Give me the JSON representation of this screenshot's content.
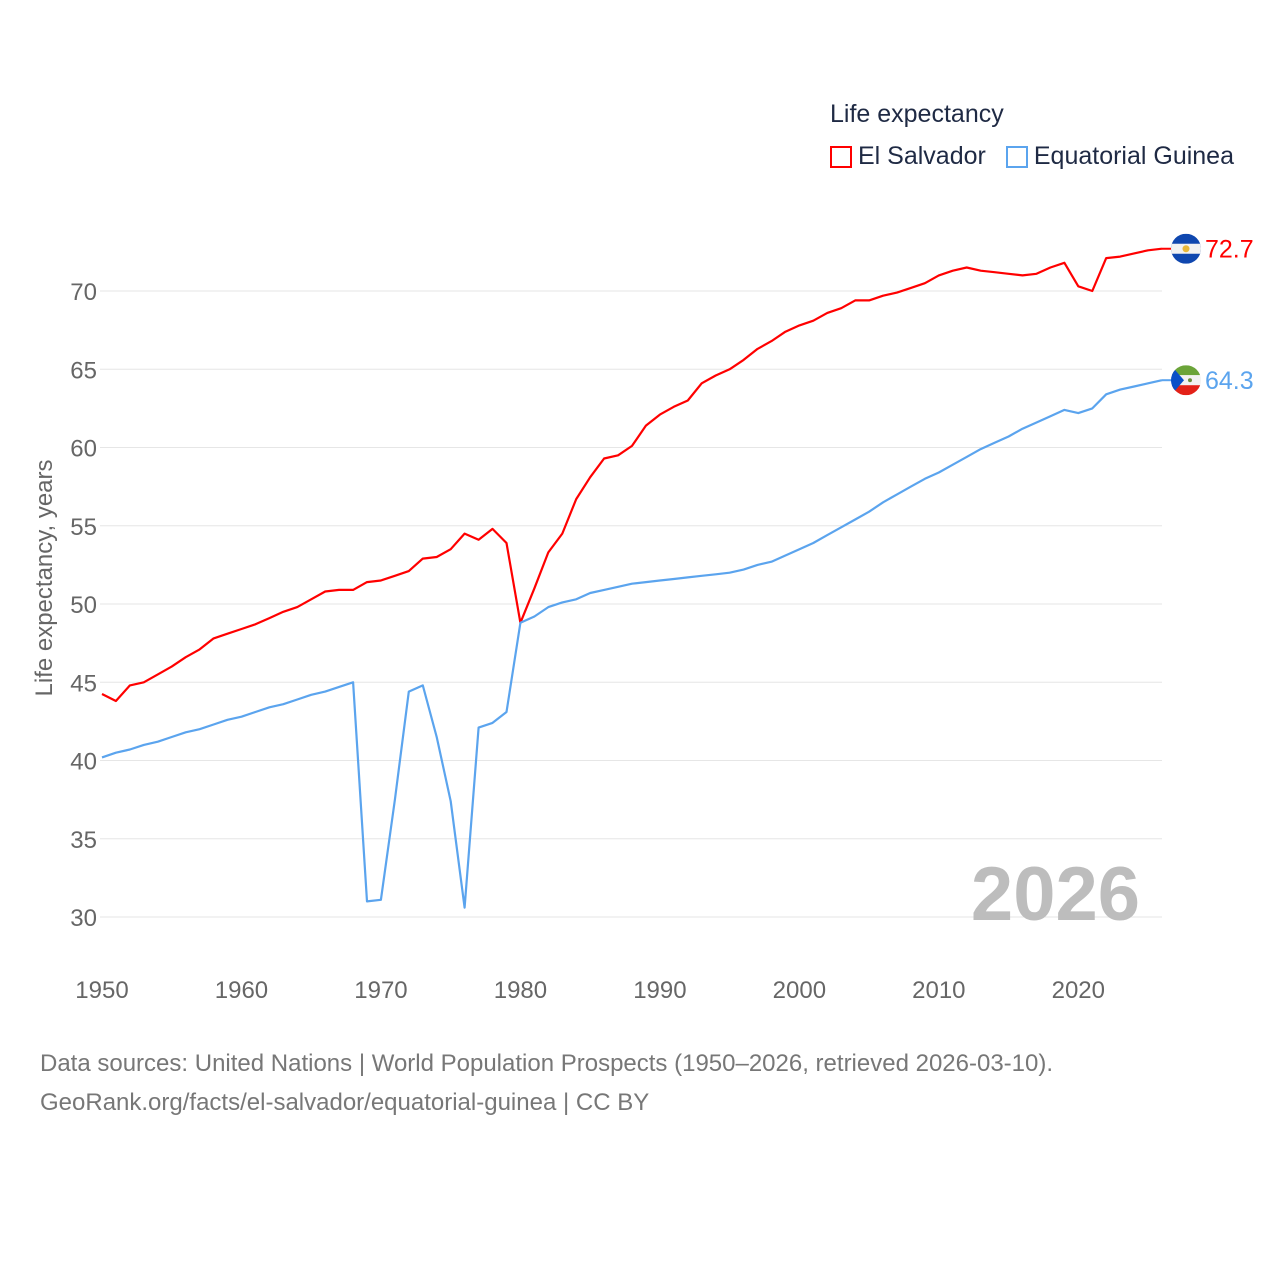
{
  "chart_data": {
    "type": "line",
    "ylabel": "Life expectancy, years",
    "xlabel": "",
    "xlim": [
      1950,
      2026
    ],
    "ylim": [
      27,
      74
    ],
    "xticks": [
      1950,
      1960,
      1970,
      1980,
      1990,
      2000,
      2010,
      2020
    ],
    "yticks": [
      30,
      35,
      40,
      45,
      50,
      55,
      60,
      65,
      70
    ],
    "grid": true,
    "year_label": "2026",
    "legend": {
      "title": "Life expectancy",
      "placement": "top-right"
    },
    "series": [
      {
        "name": "El Salvador",
        "color": "#ff0000",
        "end_label": "72.7",
        "flag": "el-salvador-flag",
        "values": [
          44.25,
          43.8,
          44.8,
          45.0,
          45.5,
          46.0,
          46.6,
          47.1,
          47.8,
          48.1,
          48.4,
          48.7,
          49.1,
          49.5,
          49.8,
          50.3,
          50.8,
          50.9,
          50.9,
          51.4,
          51.5,
          51.8,
          52.1,
          52.9,
          53.0,
          53.5,
          54.5,
          54.1,
          54.8,
          53.9,
          48.8,
          51.0,
          53.3,
          54.5,
          56.7,
          58.1,
          59.3,
          59.5,
          60.1,
          61.4,
          62.1,
          62.6,
          63.0,
          64.1,
          64.6,
          65.0,
          65.6,
          66.3,
          66.8,
          67.4,
          67.8,
          68.1,
          68.6,
          68.9,
          69.4,
          69.4,
          69.7,
          69.9,
          70.2,
          70.5,
          71.0,
          71.3,
          71.5,
          71.3,
          71.2,
          71.1,
          71.0,
          71.1,
          71.5,
          71.8,
          70.3,
          70.0,
          72.1,
          72.2,
          72.4,
          72.6,
          72.7
        ]
      },
      {
        "name": "Equatorial Guinea",
        "color": "#5ba4ee",
        "end_label": "64.3",
        "flag": "equatorial-guinea-flag",
        "values": [
          40.2,
          40.5,
          40.7,
          41.0,
          41.2,
          41.5,
          41.8,
          42.0,
          42.3,
          42.6,
          42.8,
          43.1,
          43.4,
          43.6,
          43.9,
          44.2,
          44.4,
          44.7,
          45.0,
          31.0,
          31.1,
          37.5,
          44.4,
          44.8,
          41.5,
          37.4,
          30.6,
          42.1,
          42.4,
          43.1,
          48.8,
          49.2,
          49.8,
          50.1,
          50.3,
          50.7,
          50.9,
          51.1,
          51.3,
          51.4,
          51.5,
          51.6,
          51.7,
          51.8,
          51.9,
          52.0,
          52.2,
          52.5,
          52.7,
          53.1,
          53.5,
          53.9,
          54.4,
          54.9,
          55.4,
          55.9,
          56.5,
          57.0,
          57.5,
          58.0,
          58.4,
          58.9,
          59.4,
          59.9,
          60.3,
          60.7,
          61.2,
          61.6,
          62.0,
          62.4,
          62.2,
          62.5,
          63.4,
          63.7,
          63.9,
          64.1,
          64.3
        ]
      }
    ]
  },
  "footer": {
    "line1": "Data sources: United Nations | World Population Prospects (1950–2026, retrieved 2026-03-10).",
    "line2": "GeoRank.org/facts/el-salvador/equatorial-guinea | CC BY"
  }
}
